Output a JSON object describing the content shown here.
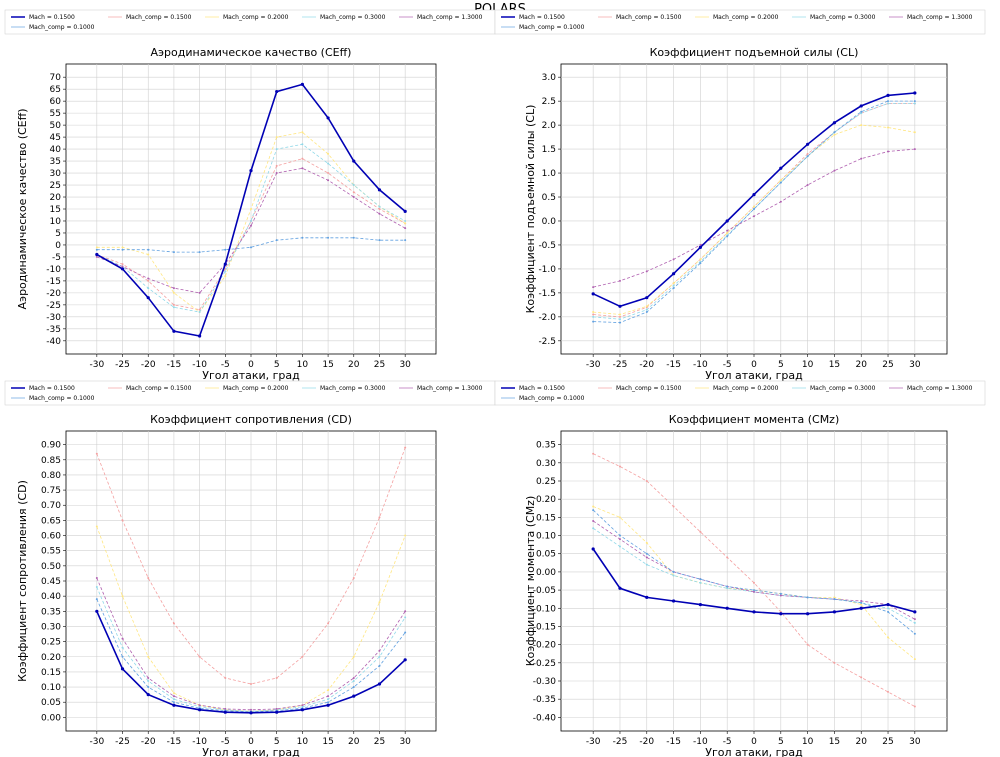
{
  "figure": {
    "suptitle": "POLARS"
  },
  "legend_entries": [
    "Mach = 0.1500",
    "Mach_comp = 0.1500",
    "Mach_comp = 0.2000",
    "Mach_comp = 0.3000",
    "Mach_comp = 1.3000",
    "Mach_comp = 0.1000"
  ],
  "series_colors": [
    "#0000b4",
    "#f4a0a0",
    "#ffe680",
    "#90d8e8",
    "#b060b0",
    "#60a0e0"
  ],
  "chart_data": [
    {
      "type": "line",
      "title": "Аэродинамическое качество (CEff)",
      "xlabel": "Угол атаки, град",
      "ylabel": "Аэродинамическое качество (CEff)",
      "xlim": [
        -30,
        30
      ],
      "ylim": [
        -40,
        70
      ],
      "xticks": [
        -30,
        -25,
        -20,
        -15,
        -10,
        -5,
        0,
        5,
        10,
        15,
        20,
        25,
        30
      ],
      "yticks": [
        -40,
        -35,
        -30,
        -25,
        -20,
        -15,
        -10,
        -5,
        0,
        5,
        10,
        15,
        20,
        25,
        30,
        35,
        40,
        45,
        50,
        55,
        60,
        65,
        70
      ],
      "grid": true,
      "legend_position": "top",
      "x": [
        -30,
        -25,
        -20,
        -15,
        -10,
        -5,
        0,
        5,
        10,
        15,
        20,
        25,
        30
      ],
      "series": [
        {
          "name": "Mach = 0.1500",
          "values": [
            -4,
            -10,
            -22,
            -36,
            -38,
            -8,
            31,
            64,
            67,
            53,
            35,
            23,
            14
          ]
        },
        {
          "name": "Mach_comp = 0.1500",
          "values": [
            -4,
            -8,
            -15,
            -25,
            -27,
            -10,
            10,
            33,
            36,
            30,
            22,
            15,
            9
          ]
        },
        {
          "name": "Mach_comp = 0.2000",
          "values": [
            -1,
            -1,
            -4,
            -20,
            -28,
            -13,
            15,
            45,
            47,
            38,
            25,
            16,
            9
          ]
        },
        {
          "name": "Mach_comp = 0.3000",
          "values": [
            -4,
            -9,
            -18,
            -26,
            -28,
            -11,
            10,
            40,
            42,
            34,
            25,
            16,
            10
          ]
        },
        {
          "name": "Mach_comp = 1.3000",
          "values": [
            -5,
            -9,
            -14,
            -18,
            -20,
            -8,
            8,
            30,
            32,
            27,
            20,
            13,
            7
          ]
        },
        {
          "name": "Mach_comp = 0.1000",
          "values": [
            -2,
            -2,
            -2,
            -3,
            -3,
            -2,
            -1,
            2,
            3,
            3,
            3,
            2,
            2
          ]
        }
      ]
    },
    {
      "type": "line",
      "title": "Коэффициент подъемной силы (CL)",
      "xlabel": "Угол атаки, град",
      "ylabel": "Коэффициент подъемной силы (CL)",
      "xlim": [
        -30,
        30
      ],
      "ylim": [
        -2.5,
        3.0
      ],
      "xticks": [
        -30,
        -25,
        -20,
        -15,
        -10,
        -5,
        0,
        5,
        10,
        15,
        20,
        25,
        30
      ],
      "yticks": [
        -2.5,
        -2.0,
        -1.5,
        -1.0,
        -0.5,
        0.0,
        0.5,
        1.0,
        1.5,
        2.0,
        2.5,
        3.0
      ],
      "grid": true,
      "legend_position": "top",
      "x": [
        -30,
        -25,
        -20,
        -15,
        -10,
        -5,
        0,
        5,
        10,
        15,
        20,
        25,
        30
      ],
      "series": [
        {
          "name": "Mach = 0.1500",
          "values": [
            -1.52,
            -1.78,
            -1.6,
            -1.1,
            -0.55,
            0.0,
            0.55,
            1.1,
            1.6,
            2.05,
            2.4,
            2.62,
            2.67
          ]
        },
        {
          "name": "Mach_comp = 0.1500",
          "values": [
            -1.95,
            -2.0,
            -1.8,
            -1.3,
            -0.8,
            -0.25,
            0.3,
            0.85,
            1.4,
            1.85,
            2.25,
            2.45,
            2.45
          ]
        },
        {
          "name": "Mach_comp = 0.2000",
          "values": [
            -1.9,
            -1.95,
            -1.78,
            -1.3,
            -0.8,
            -0.25,
            0.3,
            0.85,
            1.35,
            1.8,
            2.0,
            1.95,
            1.85
          ]
        },
        {
          "name": "Mach_comp = 0.3000",
          "values": [
            -2.0,
            -2.05,
            -1.85,
            -1.35,
            -0.85,
            -0.3,
            0.25,
            0.8,
            1.35,
            1.85,
            2.25,
            2.45,
            2.45
          ]
        },
        {
          "name": "Mach_comp = 1.3000",
          "values": [
            -1.38,
            -1.25,
            -1.05,
            -0.8,
            -0.5,
            -0.2,
            0.1,
            0.4,
            0.75,
            1.05,
            1.3,
            1.45,
            1.5
          ]
        },
        {
          "name": "Mach_comp = 0.1000",
          "values": [
            -2.1,
            -2.12,
            -1.9,
            -1.4,
            -0.88,
            -0.32,
            0.25,
            0.8,
            1.35,
            1.85,
            2.28,
            2.5,
            2.5
          ]
        }
      ]
    },
    {
      "type": "line",
      "title": "Коэффициент сопротивления (CD)",
      "xlabel": "Угол атаки, град",
      "ylabel": "Коэффициент сопротивления (CD)",
      "xlim": [
        -30,
        30
      ],
      "ylim": [
        0.0,
        0.9
      ],
      "xticks": [
        -30,
        -25,
        -20,
        -15,
        -10,
        -5,
        0,
        5,
        10,
        15,
        20,
        25,
        30
      ],
      "yticks": [
        0.0,
        0.05,
        0.1,
        0.15,
        0.2,
        0.25,
        0.3,
        0.35,
        0.4,
        0.45,
        0.5,
        0.55,
        0.6,
        0.65,
        0.7,
        0.75,
        0.8,
        0.85,
        0.9
      ],
      "grid": true,
      "legend_position": "top",
      "x": [
        -30,
        -25,
        -20,
        -15,
        -10,
        -5,
        0,
        5,
        10,
        15,
        20,
        25,
        30
      ],
      "series": [
        {
          "name": "Mach = 0.1500",
          "values": [
            0.35,
            0.16,
            0.075,
            0.04,
            0.025,
            0.017,
            0.015,
            0.017,
            0.025,
            0.04,
            0.07,
            0.11,
            0.19
          ]
        },
        {
          "name": "Mach_comp = 0.1500",
          "values": [
            0.87,
            0.65,
            0.46,
            0.31,
            0.2,
            0.13,
            0.11,
            0.13,
            0.2,
            0.31,
            0.46,
            0.66,
            0.89
          ]
        },
        {
          "name": "Mach_comp = 0.2000",
          "values": [
            0.63,
            0.4,
            0.2,
            0.08,
            0.04,
            0.025,
            0.02,
            0.025,
            0.04,
            0.09,
            0.2,
            0.38,
            0.6
          ]
        },
        {
          "name": "Mach_comp = 0.3000",
          "values": [
            0.43,
            0.23,
            0.12,
            0.06,
            0.035,
            0.025,
            0.02,
            0.025,
            0.035,
            0.06,
            0.12,
            0.2,
            0.33
          ]
        },
        {
          "name": "Mach_comp = 1.3000",
          "values": [
            0.46,
            0.26,
            0.13,
            0.07,
            0.04,
            0.028,
            0.025,
            0.028,
            0.04,
            0.07,
            0.13,
            0.22,
            0.35
          ]
        },
        {
          "name": "Mach_comp = 0.1000",
          "values": [
            0.39,
            0.2,
            0.1,
            0.05,
            0.03,
            0.022,
            0.018,
            0.022,
            0.03,
            0.05,
            0.1,
            0.17,
            0.28
          ]
        }
      ]
    },
    {
      "type": "line",
      "title": "Коэффициент момента (CMz)",
      "xlabel": "Угол атаки, град",
      "ylabel": "Коэффициент момента (CMz)",
      "xlim": [
        -30,
        30
      ],
      "ylim": [
        -0.4,
        0.35
      ],
      "xticks": [
        -30,
        -25,
        -20,
        -15,
        -10,
        -5,
        0,
        5,
        10,
        15,
        20,
        25,
        30
      ],
      "yticks": [
        -0.4,
        -0.35,
        -0.3,
        -0.25,
        -0.2,
        -0.15,
        -0.1,
        -0.05,
        0.0,
        0.05,
        0.1,
        0.15,
        0.2,
        0.25,
        0.3,
        0.35
      ],
      "grid": true,
      "legend_position": "top",
      "x": [
        -30,
        -25,
        -20,
        -15,
        -10,
        -5,
        0,
        5,
        10,
        15,
        20,
        25,
        30
      ],
      "series": [
        {
          "name": "Mach = 0.1500",
          "values": [
            0.063,
            -0.045,
            -0.07,
            -0.08,
            -0.09,
            -0.1,
            -0.11,
            -0.115,
            -0.115,
            -0.11,
            -0.1,
            -0.09,
            -0.11
          ]
        },
        {
          "name": "Mach_comp = 0.1500",
          "values": [
            0.325,
            0.29,
            0.25,
            0.18,
            0.11,
            0.04,
            -0.03,
            -0.11,
            -0.2,
            -0.25,
            -0.29,
            -0.33,
            -0.37
          ]
        },
        {
          "name": "Mach_comp = 0.2000",
          "values": [
            0.18,
            0.15,
            0.08,
            -0.01,
            -0.03,
            -0.045,
            -0.05,
            -0.06,
            -0.07,
            -0.07,
            -0.09,
            -0.18,
            -0.24
          ]
        },
        {
          "name": "Mach_comp = 0.3000",
          "values": [
            0.12,
            0.07,
            0.02,
            -0.01,
            -0.03,
            -0.045,
            -0.055,
            -0.065,
            -0.07,
            -0.075,
            -0.085,
            -0.1,
            -0.14
          ]
        },
        {
          "name": "Mach_comp = 1.3000",
          "values": [
            0.14,
            0.09,
            0.04,
            0.0,
            -0.02,
            -0.04,
            -0.055,
            -0.065,
            -0.07,
            -0.075,
            -0.08,
            -0.09,
            -0.13
          ]
        },
        {
          "name": "Mach_comp = 0.1000",
          "values": [
            0.17,
            0.1,
            0.05,
            0.0,
            -0.02,
            -0.04,
            -0.05,
            -0.06,
            -0.07,
            -0.075,
            -0.085,
            -0.11,
            -0.17
          ]
        }
      ]
    }
  ]
}
